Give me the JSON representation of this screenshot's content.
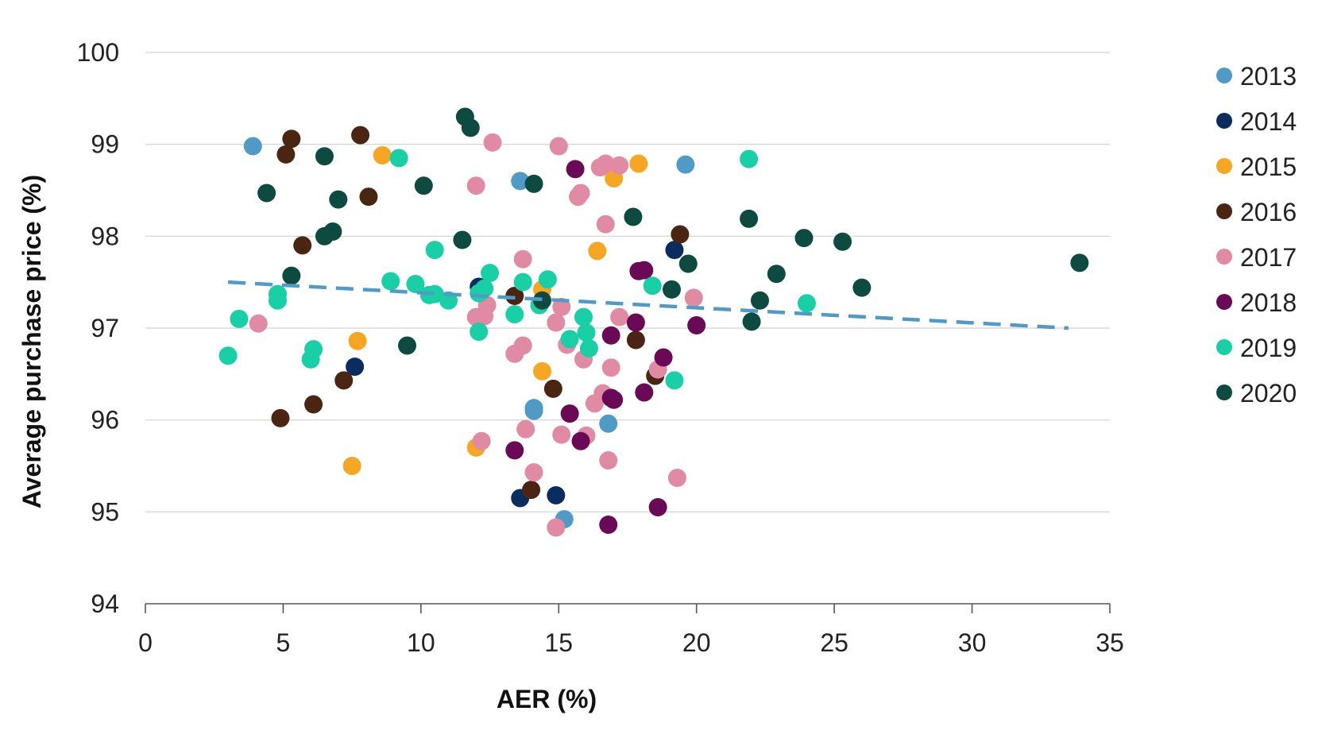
{
  "chart_data": {
    "type": "scatter",
    "xlabel": "AER (%)",
    "ylabel": "Average purchase price (%)",
    "xlim": [
      0,
      35
    ],
    "ylim": [
      94,
      100
    ],
    "xticks": [
      "0",
      "5",
      "10",
      "15",
      "20",
      "25",
      "30",
      "35"
    ],
    "yticks": [
      "94",
      "95",
      "96",
      "97",
      "98",
      "99",
      "100"
    ],
    "grid": "horizontal",
    "legend_position": "right",
    "trendline": {
      "style": "dashed",
      "color": "#4f9bc6",
      "from": [
        3,
        97.5
      ],
      "to": [
        33.5,
        97.0
      ]
    },
    "series": [
      {
        "name": "2013",
        "color": "#4f9bc6",
        "points": [
          [
            3.9,
            98.98
          ],
          [
            13.6,
            98.6
          ],
          [
            19.6,
            98.78
          ],
          [
            14.1,
            96.1
          ],
          [
            14.1,
            96.13
          ],
          [
            16.8,
            95.96
          ],
          [
            15.2,
            94.92
          ]
        ]
      },
      {
        "name": "2014",
        "color": "#0a2c5e",
        "points": [
          [
            12.1,
            97.45
          ],
          [
            7.6,
            96.58
          ],
          [
            19.2,
            97.85
          ],
          [
            13.6,
            95.15
          ],
          [
            14.9,
            95.18
          ]
        ]
      },
      {
        "name": "2015",
        "color": "#f5a623",
        "points": [
          [
            8.6,
            98.88
          ],
          [
            17.0,
            98.63
          ],
          [
            17.9,
            98.79
          ],
          [
            16.4,
            97.84
          ],
          [
            7.7,
            96.86
          ],
          [
            14.4,
            96.53
          ],
          [
            14.4,
            97.42
          ],
          [
            12.0,
            95.7
          ],
          [
            7.5,
            95.5
          ]
        ]
      },
      {
        "name": "2016",
        "color": "#4a2512",
        "points": [
          [
            5.3,
            99.06
          ],
          [
            5.1,
            98.89
          ],
          [
            7.8,
            99.1
          ],
          [
            8.1,
            98.43
          ],
          [
            5.7,
            97.9
          ],
          [
            13.4,
            97.35
          ],
          [
            19.4,
            98.02
          ],
          [
            17.8,
            96.87
          ],
          [
            18.5,
            96.48
          ],
          [
            14.8,
            96.34
          ],
          [
            7.2,
            96.43
          ],
          [
            6.1,
            96.17
          ],
          [
            4.9,
            96.02
          ],
          [
            14.0,
            95.24
          ]
        ]
      },
      {
        "name": "2017",
        "color": "#e08aa3",
        "points": [
          [
            12.6,
            99.02
          ],
          [
            15.0,
            98.98
          ],
          [
            12.0,
            98.55
          ],
          [
            15.8,
            98.47
          ],
          [
            15.7,
            98.43
          ],
          [
            16.5,
            98.75
          ],
          [
            16.7,
            98.79
          ],
          [
            17.2,
            98.77
          ],
          [
            16.7,
            98.13
          ],
          [
            13.7,
            97.75
          ],
          [
            12.4,
            97.25
          ],
          [
            12.0,
            97.12
          ],
          [
            12.3,
            97.13
          ],
          [
            15.1,
            97.23
          ],
          [
            14.9,
            97.06
          ],
          [
            17.2,
            97.12
          ],
          [
            19.9,
            97.33
          ],
          [
            4.1,
            97.05
          ],
          [
            13.7,
            96.81
          ],
          [
            13.4,
            96.72
          ],
          [
            15.3,
            96.82
          ],
          [
            15.9,
            96.66
          ],
          [
            16.9,
            96.57
          ],
          [
            16.6,
            96.29
          ],
          [
            16.3,
            96.18
          ],
          [
            18.6,
            96.55
          ],
          [
            13.8,
            95.9
          ],
          [
            12.2,
            95.77
          ],
          [
            15.1,
            95.84
          ],
          [
            16.0,
            95.83
          ],
          [
            14.1,
            95.43
          ],
          [
            16.8,
            95.56
          ],
          [
            19.3,
            95.37
          ],
          [
            14.9,
            94.83
          ]
        ]
      },
      {
        "name": "2018",
        "color": "#6a0a57",
        "points": [
          [
            15.6,
            98.73
          ],
          [
            18.1,
            97.63
          ],
          [
            17.9,
            97.62
          ],
          [
            17.8,
            97.06
          ],
          [
            16.9,
            96.92
          ],
          [
            20.0,
            97.03
          ],
          [
            18.8,
            96.68
          ],
          [
            16.9,
            96.24
          ],
          [
            17.0,
            96.22
          ],
          [
            18.1,
            96.3
          ],
          [
            15.4,
            96.07
          ],
          [
            15.8,
            95.77
          ],
          [
            13.4,
            95.67
          ],
          [
            18.6,
            95.05
          ],
          [
            16.8,
            94.86
          ]
        ]
      },
      {
        "name": "2019",
        "color": "#19cfa5",
        "points": [
          [
            9.2,
            98.85
          ],
          [
            21.9,
            98.84
          ],
          [
            10.5,
            97.85
          ],
          [
            8.9,
            97.51
          ],
          [
            9.8,
            97.48
          ],
          [
            10.3,
            97.36
          ],
          [
            10.5,
            97.37
          ],
          [
            11.0,
            97.3
          ],
          [
            12.5,
            97.6
          ],
          [
            12.3,
            97.43
          ],
          [
            12.1,
            97.38
          ],
          [
            13.7,
            97.5
          ],
          [
            14.6,
            97.53
          ],
          [
            14.3,
            97.25
          ],
          [
            18.4,
            97.46
          ],
          [
            13.4,
            97.15
          ],
          [
            15.9,
            97.12
          ],
          [
            16.0,
            96.95
          ],
          [
            15.4,
            96.88
          ],
          [
            16.1,
            96.78
          ],
          [
            12.1,
            96.96
          ],
          [
            19.2,
            96.43
          ],
          [
            24.0,
            97.27
          ],
          [
            3.4,
            97.1
          ],
          [
            4.8,
            97.3
          ],
          [
            4.8,
            97.37
          ],
          [
            3.0,
            96.7
          ],
          [
            6.1,
            96.77
          ],
          [
            6.0,
            96.66
          ]
        ]
      },
      {
        "name": "2020",
        "color": "#0d4a40",
        "points": [
          [
            11.6,
            99.3
          ],
          [
            11.8,
            99.18
          ],
          [
            6.5,
            98.87
          ],
          [
            4.4,
            98.47
          ],
          [
            7.0,
            98.4
          ],
          [
            10.1,
            98.55
          ],
          [
            14.1,
            98.57
          ],
          [
            6.5,
            98.0
          ],
          [
            6.8,
            98.05
          ],
          [
            11.5,
            97.96
          ],
          [
            5.3,
            97.57
          ],
          [
            9.5,
            96.81
          ],
          [
            14.4,
            97.3
          ],
          [
            17.7,
            98.21
          ],
          [
            19.7,
            97.7
          ],
          [
            19.1,
            97.42
          ],
          [
            21.9,
            98.19
          ],
          [
            23.9,
            97.98
          ],
          [
            25.3,
            97.94
          ],
          [
            22.9,
            97.59
          ],
          [
            26.0,
            97.44
          ],
          [
            22.3,
            97.3
          ],
          [
            22.0,
            97.07
          ],
          [
            33.9,
            97.71
          ]
        ]
      }
    ]
  }
}
